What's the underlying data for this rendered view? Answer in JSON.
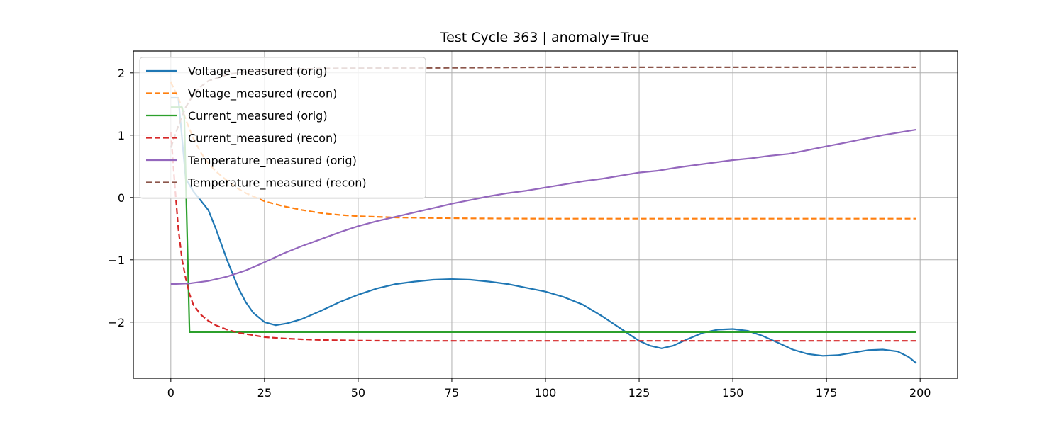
{
  "chart_data": {
    "type": "line",
    "title": "Test Cycle 363 | anomaly=True",
    "xlabel": "",
    "ylabel": "",
    "xlim": [
      -10,
      210
    ],
    "ylim": [
      -2.9,
      2.35
    ],
    "xticks": [
      0,
      25,
      50,
      75,
      100,
      125,
      150,
      175,
      200
    ],
    "yticks": [
      -2,
      -1,
      0,
      1,
      2
    ],
    "xtick_labels": [
      "0",
      "25",
      "50",
      "75",
      "100",
      "125",
      "150",
      "175",
      "200"
    ],
    "ytick_labels": [
      "−2",
      "−1",
      "0",
      "1",
      "2"
    ],
    "grid": true,
    "legend_position": "top-left",
    "series": [
      {
        "name": "Voltage_measured (orig)",
        "color": "#1f77b4",
        "dash": "solid",
        "x": [
          0,
          2,
          4,
          6,
          8,
          10,
          12,
          15,
          18,
          20,
          22,
          25,
          28,
          31,
          35,
          40,
          45,
          50,
          55,
          60,
          65,
          70,
          75,
          80,
          85,
          90,
          95,
          100,
          105,
          110,
          115,
          120,
          125,
          128,
          131,
          134,
          138,
          142,
          146,
          150,
          154,
          158,
          162,
          166,
          170,
          174,
          178,
          182,
          186,
          190,
          194,
          197,
          199
        ],
        "y": [
          1.6,
          1.6,
          0.3,
          0.1,
          -0.05,
          -0.2,
          -0.5,
          -1.0,
          -1.45,
          -1.68,
          -1.85,
          -2.0,
          -2.05,
          -2.02,
          -1.95,
          -1.82,
          -1.68,
          -1.56,
          -1.46,
          -1.39,
          -1.35,
          -1.32,
          -1.31,
          -1.32,
          -1.35,
          -1.39,
          -1.45,
          -1.51,
          -1.6,
          -1.72,
          -1.9,
          -2.1,
          -2.3,
          -2.38,
          -2.42,
          -2.38,
          -2.27,
          -2.17,
          -2.12,
          -2.11,
          -2.14,
          -2.22,
          -2.33,
          -2.44,
          -2.51,
          -2.54,
          -2.53,
          -2.49,
          -2.45,
          -2.44,
          -2.47,
          -2.56,
          -2.66
        ]
      },
      {
        "name": "Voltage_measured (recon)",
        "color": "#ff7f0e",
        "dash": "dashed",
        "x": [
          0,
          2,
          4,
          6,
          8,
          10,
          12,
          15,
          18,
          20,
          25,
          30,
          35,
          40,
          45,
          50,
          60,
          70,
          80,
          100,
          120,
          150,
          175,
          199
        ],
        "y": [
          1.85,
          1.6,
          1.25,
          0.95,
          0.72,
          0.55,
          0.42,
          0.27,
          0.14,
          0.07,
          -0.06,
          -0.14,
          -0.2,
          -0.25,
          -0.28,
          -0.3,
          -0.32,
          -0.33,
          -0.335,
          -0.34,
          -0.34,
          -0.34,
          -0.34,
          -0.34
        ]
      },
      {
        "name": "Current_measured (orig)",
        "color": "#2ca02c",
        "dash": "solid",
        "x": [
          0,
          3,
          3.6,
          5,
          10,
          20,
          30,
          50,
          75,
          100,
          125,
          150,
          175,
          199
        ],
        "y": [
          1.45,
          1.45,
          1.3,
          -2.16,
          -2.16,
          -2.16,
          -2.16,
          -2.16,
          -2.16,
          -2.16,
          -2.16,
          -2.16,
          -2.16,
          -2.16
        ]
      },
      {
        "name": "Current_measured (recon)",
        "color": "#d62728",
        "dash": "dashed",
        "x": [
          0,
          1,
          2,
          3,
          4,
          5,
          6,
          8,
          10,
          12,
          15,
          18,
          20,
          25,
          30,
          35,
          40,
          50,
          60,
          80,
          100,
          150,
          199
        ],
        "y": [
          1.05,
          0.25,
          -0.5,
          -1.0,
          -1.3,
          -1.55,
          -1.72,
          -1.88,
          -1.98,
          -2.05,
          -2.12,
          -2.17,
          -2.19,
          -2.24,
          -2.26,
          -2.275,
          -2.285,
          -2.295,
          -2.3,
          -2.3,
          -2.3,
          -2.3,
          -2.3
        ]
      },
      {
        "name": "Temperature_measured (orig)",
        "color": "#9467bd",
        "dash": "solid",
        "x": [
          0,
          5,
          10,
          15,
          20,
          25,
          30,
          35,
          40,
          45,
          50,
          55,
          60,
          65,
          70,
          75,
          80,
          85,
          90,
          95,
          100,
          105,
          110,
          115,
          120,
          125,
          130,
          135,
          140,
          145,
          150,
          155,
          160,
          165,
          170,
          175,
          180,
          185,
          190,
          195,
          199
        ],
        "y": [
          -1.39,
          -1.38,
          -1.34,
          -1.27,
          -1.17,
          -1.04,
          -0.9,
          -0.78,
          -0.67,
          -0.56,
          -0.46,
          -0.38,
          -0.31,
          -0.24,
          -0.17,
          -0.1,
          -0.04,
          0.02,
          0.07,
          0.11,
          0.16,
          0.21,
          0.26,
          0.3,
          0.35,
          0.4,
          0.43,
          0.48,
          0.52,
          0.56,
          0.6,
          0.63,
          0.67,
          0.7,
          0.76,
          0.82,
          0.88,
          0.94,
          1.0,
          1.05,
          1.09
        ]
      },
      {
        "name": "Temperature_measured (recon)",
        "color": "#8c564b",
        "dash": "dashed",
        "x": [
          0,
          2,
          4,
          6,
          8,
          10,
          15,
          20,
          30,
          40,
          50,
          70,
          100,
          150,
          199
        ],
        "y": [
          0.8,
          1.15,
          1.45,
          1.65,
          1.78,
          1.87,
          1.97,
          2.02,
          2.05,
          2.07,
          2.075,
          2.08,
          2.09,
          2.09,
          2.09
        ]
      }
    ]
  }
}
